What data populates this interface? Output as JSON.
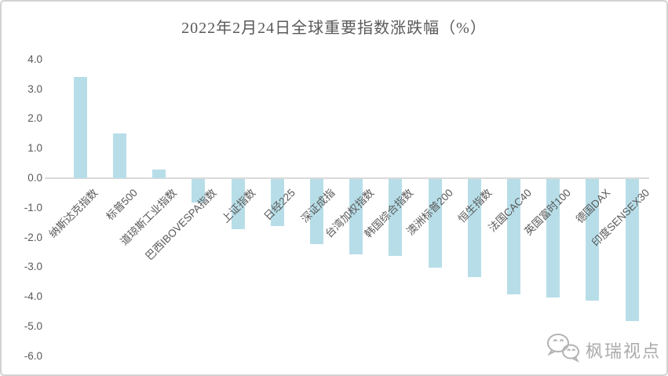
{
  "chart_data": {
    "type": "bar",
    "title": "2022年2月24日全球重要指数涨跌幅（%）",
    "categories": [
      "纳斯达克指数",
      "标普500",
      "道琼斯工业指数",
      "巴西IBOVESPA指数",
      "上证指数",
      "日经225",
      "深证成指",
      "台湾加权指数",
      "韩国综合指数",
      "澳洲标普200",
      "恒生指数",
      "法国CAC40",
      "英国富时100",
      "德国DAX",
      "印度SENSEX30"
    ],
    "values": [
      3.4,
      1.5,
      0.3,
      -0.8,
      -1.7,
      -1.6,
      -2.2,
      -2.55,
      -2.6,
      -3.0,
      -3.3,
      -3.9,
      -4.0,
      -4.1,
      -4.8
    ],
    "xlabel": "",
    "ylabel": "",
    "ylim": [
      -6.0,
      4.0
    ],
    "ytick_labels": [
      "4.0",
      "3.0",
      "2.0",
      "1.0",
      "0.0",
      "-1.0",
      "-2.0",
      "-3.0",
      "-4.0",
      "-5.0",
      "-6.0"
    ],
    "grid": false,
    "legend": false,
    "label_rotation_deg": 45,
    "colors": {
      "bar": "#B7DEE8",
      "axis_line": "#D9D9D9",
      "text": "#595959"
    }
  },
  "watermark": {
    "icon": "wechat-chat-bubbles-icon",
    "text": "枫瑞视点"
  }
}
